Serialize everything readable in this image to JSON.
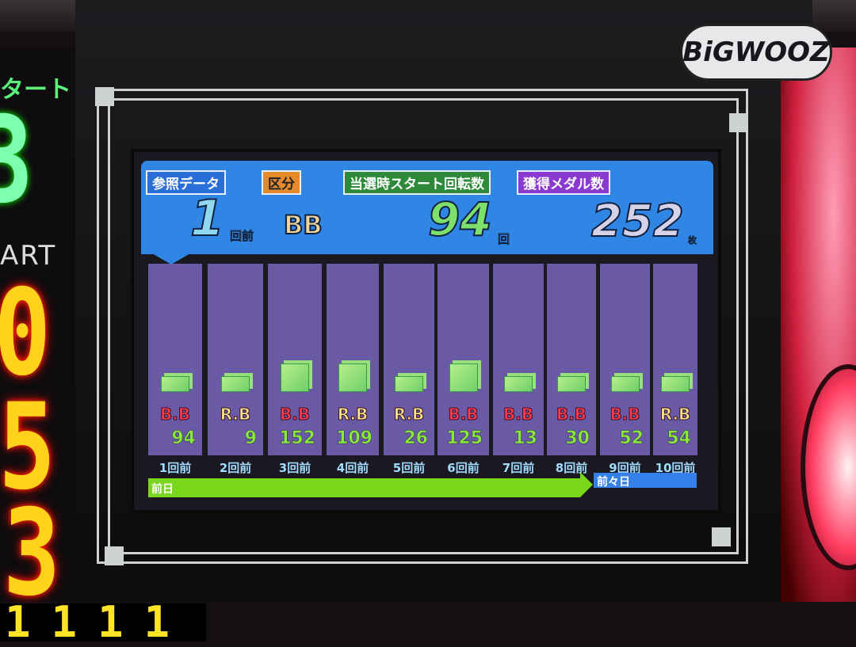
{
  "device": {
    "logo": "BiGWOOZ",
    "start_label_jp": "タート",
    "start_label_en": "ART",
    "start_digit": "3",
    "red_digits": [
      "0",
      "5",
      "3"
    ],
    "bottom_number": "1111"
  },
  "header": {
    "reference_label": "参照データ",
    "reference_value": "1",
    "reference_unit": "回前",
    "type_label": "区分",
    "type_value": "BB",
    "start_spins_label": "当選時スタート回転数",
    "start_spins_value": "94",
    "start_spins_unit": "回",
    "medals_label": "獲得メダル数",
    "medals_value": "252",
    "medals_unit": "枚"
  },
  "colors": {
    "bb": "#ff3b50",
    "rb": "#ffe98a",
    "value": "#8ce83a",
    "header": "#2f86e4",
    "column": "#6a5aa6"
  },
  "days": {
    "previous_day": "前日",
    "day_before": "前々日"
  },
  "chart_data": {
    "type": "bar",
    "categories": [
      "1回前",
      "2回前",
      "3回前",
      "4回前",
      "5回前",
      "6回前",
      "7回前",
      "8回前",
      "9回前",
      "10回前"
    ],
    "kinds": [
      "B.B",
      "R.B",
      "B.B",
      "R.B",
      "R.B",
      "B.B",
      "B.B",
      "B.B",
      "B.B",
      "R.B"
    ],
    "values": [
      94,
      9,
      152,
      109,
      26,
      125,
      13,
      30,
      52,
      54
    ]
  }
}
